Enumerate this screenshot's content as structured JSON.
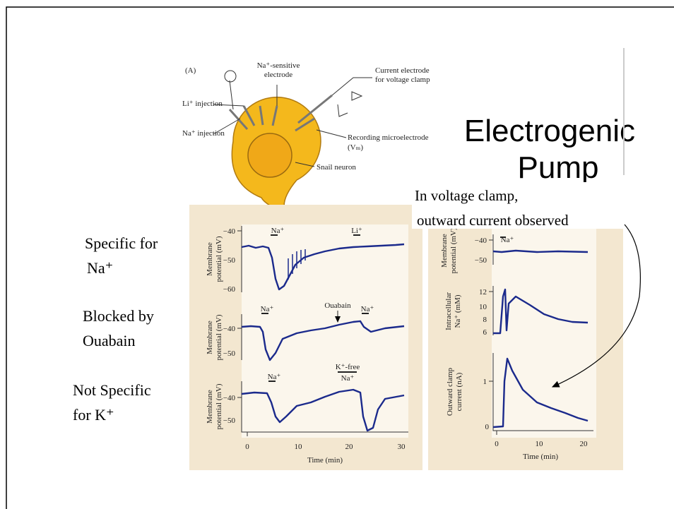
{
  "title": [
    "Electrogenic",
    "Pump"
  ],
  "side_labels": [
    [
      "Specific for",
      "Na⁺"
    ],
    [
      "Blocked by",
      "Ouabain"
    ],
    [
      "Not Specific",
      "for K⁺"
    ]
  ],
  "annotation": [
    "In voltage clamp,",
    "outward current observed"
  ],
  "diagram": {
    "panel": "(A)",
    "labels": [
      "Na⁺-sensitive",
      "electrode",
      "Current electrode",
      "for voltage clamp",
      "Li⁺ injection",
      "Na⁺ injection",
      "Recording microelectrode",
      "(Vₘ)",
      "Snail neuron"
    ]
  },
  "left_figure": {
    "y_label": [
      "Membrane",
      "potential (mV)"
    ],
    "panel_ticks": [
      [
        "−40",
        "−50",
        "−60"
      ],
      [
        "−40",
        "−50"
      ],
      [
        "−40",
        "−50"
      ]
    ],
    "stimuli": [
      "Na⁺",
      "Li⁺",
      "Na⁺",
      "Ouabain",
      "Na⁺",
      "Na⁺",
      "K⁺-free",
      "Na⁺"
    ],
    "x_ticks": [
      "0",
      "10",
      "20",
      "30"
    ],
    "x_label": "Time (min)"
  },
  "right_figure": {
    "y_labels": [
      [
        "Membrane",
        "potential (mV)"
      ],
      [
        "Intracellular",
        "Na⁺ (mM)"
      ],
      [
        "Outward clamp",
        "current (nA)"
      ]
    ],
    "panel_ticks": [
      [
        "−40",
        "−50"
      ],
      [
        "12",
        "10",
        "8",
        "6"
      ],
      [
        "1",
        "0"
      ]
    ],
    "stimulus": "Na⁺",
    "x_ticks": [
      "0",
      "10",
      "20"
    ],
    "x_label": "Time (min)"
  }
}
